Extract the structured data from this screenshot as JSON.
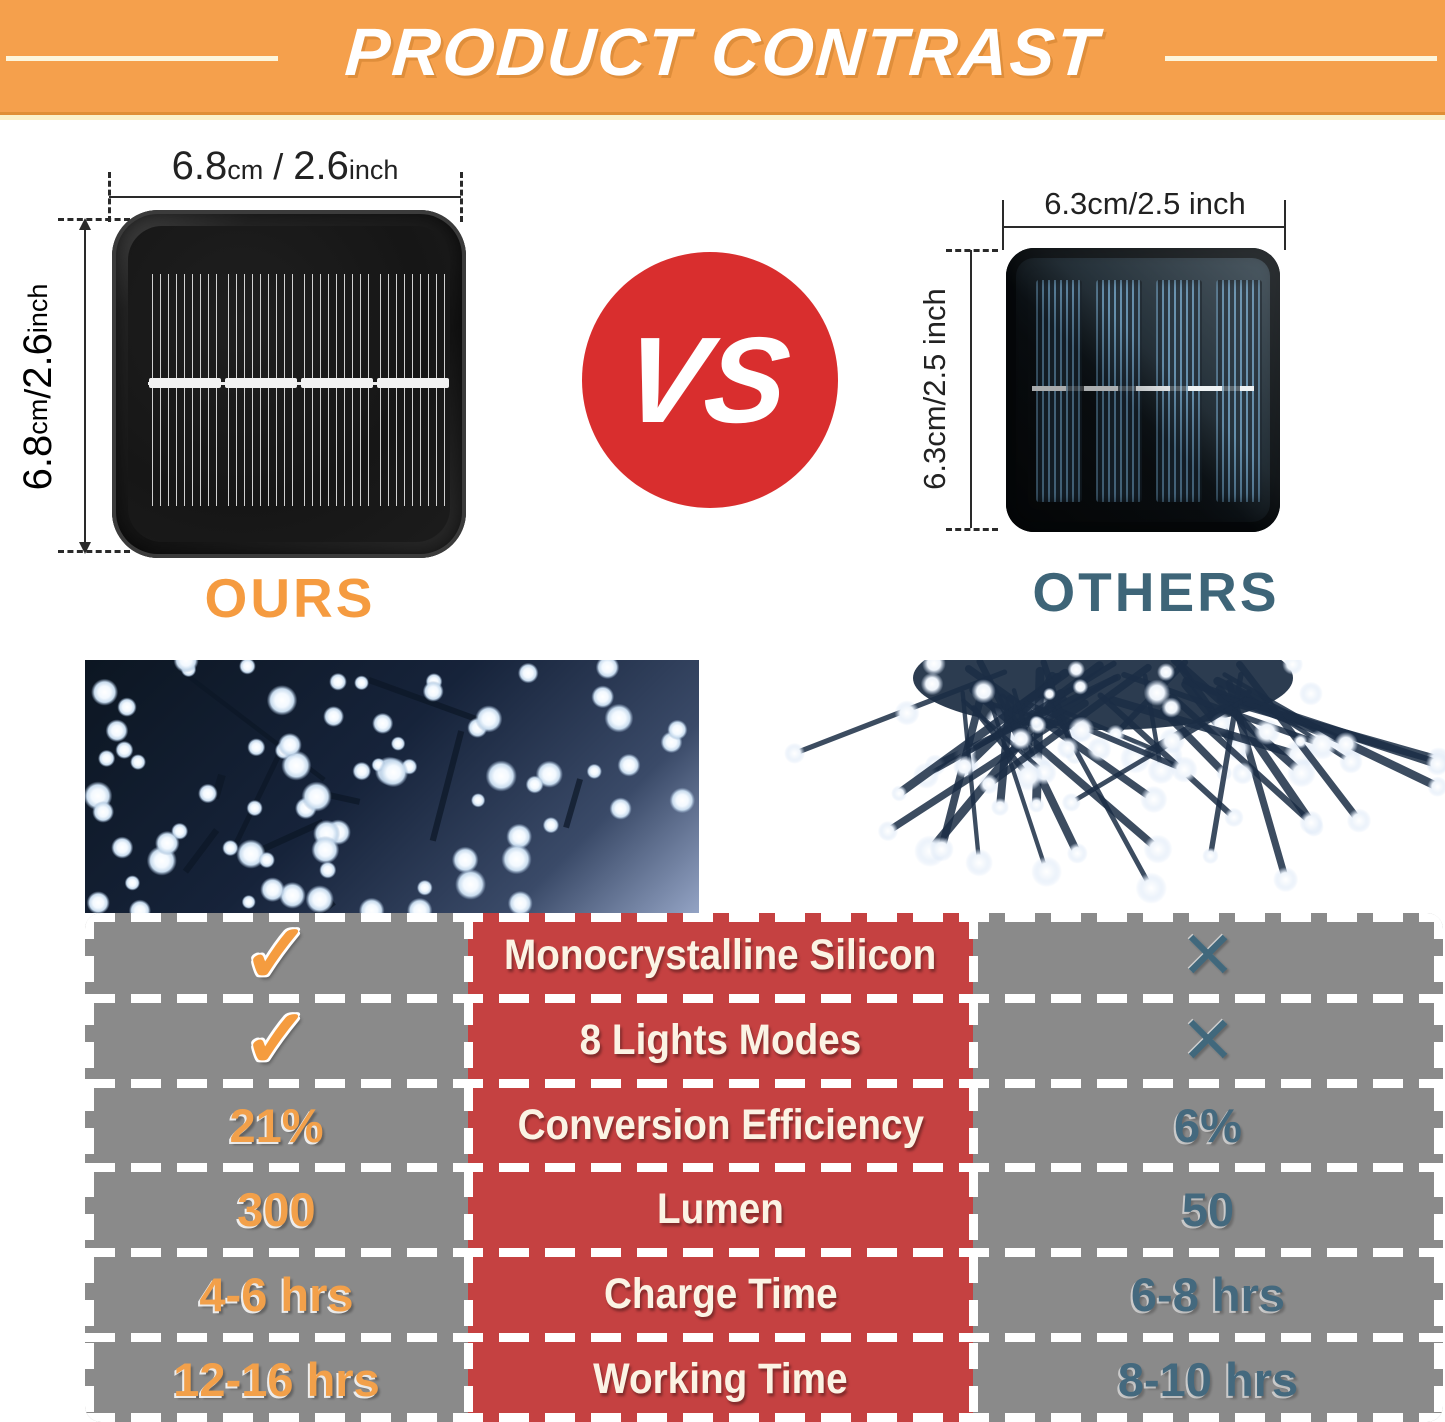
{
  "banner": {
    "title": "PRODUCT CONTRAST"
  },
  "comparison": {
    "ours": {
      "label": "OURS",
      "width_dim": {
        "num1": "6.8",
        "unit1": "cm",
        "sep": " / ",
        "num2": "2.6",
        "unit2": "inch"
      },
      "height_dim": {
        "num1": "6.8",
        "unit1": "cm",
        "sep": " / ",
        "num2": "2.6",
        "unit2": "inch"
      }
    },
    "vs_label": "VS",
    "others": {
      "label": "OTHERS",
      "width_dim_text": "6.3cm/2.5 inch",
      "height_dim_text": "6.3cm/2.5 inch"
    }
  },
  "table": {
    "check_icon": "✓",
    "cross_icon": "✕",
    "rows": [
      {
        "ours": {
          "type": "check"
        },
        "feature": "Monocrystalline Silicon",
        "others": {
          "type": "cross"
        }
      },
      {
        "ours": {
          "type": "check"
        },
        "feature": "8 Lights Modes",
        "others": {
          "type": "cross"
        }
      },
      {
        "ours": {
          "type": "text",
          "value": "21%"
        },
        "feature": "Conversion Efficiency",
        "others": {
          "type": "text",
          "value": "6%"
        }
      },
      {
        "ours": {
          "type": "text",
          "value": "300"
        },
        "feature": "Lumen",
        "others": {
          "type": "text",
          "value": "50"
        }
      },
      {
        "ours": {
          "type": "text",
          "value": "4-6 hrs"
        },
        "feature": "Charge Time",
        "others": {
          "type": "text",
          "value": "6-8 hrs"
        }
      },
      {
        "ours": {
          "type": "text",
          "value": "12-16 hrs"
        },
        "feature": "Working Time",
        "others": {
          "type": "text",
          "value": "8-10 hrs"
        }
      }
    ]
  },
  "colors": {
    "banner_orange": "#F5A04C",
    "vs_red": "#D92E2E",
    "table_red": "#C54141",
    "table_gray": "#8A8A8A",
    "ours_accent": "#F59B40",
    "others_accent": "#3E6578"
  }
}
